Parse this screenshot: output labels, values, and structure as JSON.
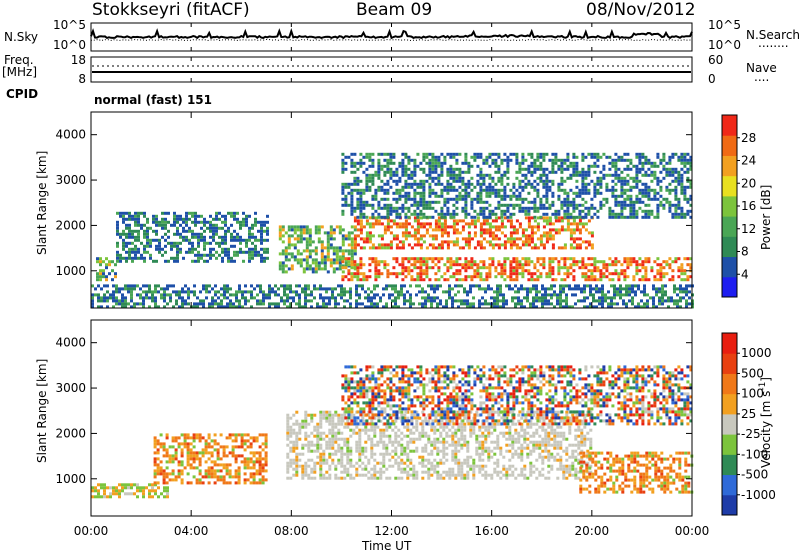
{
  "header": {
    "station": "Stokkseyri (fitACF)",
    "beam": "Beam 09",
    "date": "08/Nov/2012"
  },
  "left_labels": {
    "noise_sky": "N.Sky",
    "freq": "Freq.",
    "freq_unit": "[MHz]",
    "cpid": "CPID"
  },
  "right_labels": {
    "noise_search": "N.Search",
    "noise_search_line": "........",
    "nave": "Nave",
    "nave_line": "...."
  },
  "noise_axis": {
    "left_ticks": [
      "10^5",
      "10^0"
    ],
    "right_ticks": [
      "10^5",
      "10^0"
    ]
  },
  "freq_axis": {
    "left_ticks": [
      "18",
      "8"
    ],
    "right_ticks": [
      "60",
      "0"
    ]
  },
  "cpid_text": "normal (fast) 151",
  "colors": {
    "power_scale": [
      "#1e1ef0",
      "#1e50a8",
      "#2f8a55",
      "#4aa655",
      "#7cc43c",
      "#e8e020",
      "#f2a020",
      "#f06a14",
      "#f02818"
    ],
    "velocity_scale": [
      "#1e3ca8",
      "#2f6ad8",
      "#2f8a55",
      "#7cc43c",
      "#c8c8be",
      "#f2a020",
      "#f07818",
      "#e84010",
      "#e81e10"
    ]
  },
  "chart_data": [
    {
      "type": "heatmap",
      "panel": "power",
      "x_ticks": [
        "00:00",
        "04:00",
        "08:00",
        "12:00",
        "16:00",
        "20:00",
        "00:00"
      ],
      "xlim_hours": [
        0,
        24
      ],
      "ylabel": "Slant Range [km]",
      "ylim": [
        180,
        4500
      ],
      "y_ticks": [
        1000,
        2000,
        3000,
        4000
      ],
      "colorbar": {
        "label": "Power [dB]",
        "ticks": [
          4,
          8,
          12,
          16,
          20,
          24,
          28
        ],
        "range": [
          0,
          30
        ]
      },
      "features": [
        {
          "t_start": 0.0,
          "t_end": 24.0,
          "range_min": 200,
          "range_max": 700,
          "level": "low"
        },
        {
          "t_start": 0.2,
          "t_end": 1.0,
          "range_min": 800,
          "range_max": 1300,
          "level": "medium"
        },
        {
          "t_start": 1.0,
          "t_end": 7.0,
          "range_min": 1200,
          "range_max": 2300,
          "level": "low"
        },
        {
          "t_start": 7.5,
          "t_end": 10.5,
          "range_min": 1000,
          "range_max": 2000,
          "level": "medium"
        },
        {
          "t_start": 10.5,
          "t_end": 20.0,
          "range_min": 1500,
          "range_max": 2200,
          "level": "high"
        },
        {
          "t_start": 10.0,
          "t_end": 24.0,
          "range_min": 800,
          "range_max": 1300,
          "level": "high"
        },
        {
          "t_start": 10.0,
          "t_end": 24.0,
          "range_min": 2200,
          "range_max": 3600,
          "level": "low"
        }
      ]
    },
    {
      "type": "heatmap",
      "panel": "velocity",
      "x_ticks": [
        "00:00",
        "04:00",
        "08:00",
        "12:00",
        "16:00",
        "20:00",
        "00:00"
      ],
      "xlabel": "Time UT",
      "xlim_hours": [
        0,
        24
      ],
      "ylabel": "Slant Range [km]",
      "ylim": [
        180,
        4500
      ],
      "y_ticks": [
        1000,
        2000,
        3000,
        4000
      ],
      "colorbar": {
        "label": "Velocity [m s-1]",
        "ticks": [
          "1000",
          "500",
          "100",
          "25",
          "-25",
          "-100",
          "-500",
          "-1000"
        ]
      },
      "features": [
        {
          "t_start": 0.0,
          "t_end": 3.0,
          "range_min": 600,
          "range_max": 900,
          "level": "slow"
        },
        {
          "t_start": 2.5,
          "t_end": 7.0,
          "range_min": 900,
          "range_max": 2000,
          "level": "away"
        },
        {
          "t_start": 7.8,
          "t_end": 20.0,
          "range_min": 1000,
          "range_max": 2500,
          "level": "ground"
        },
        {
          "t_start": 10.0,
          "t_end": 24.0,
          "range_min": 2200,
          "range_max": 3500,
          "level": "mixed"
        },
        {
          "t_start": 19.5,
          "t_end": 24.0,
          "range_min": 700,
          "range_max": 1600,
          "level": "away"
        }
      ]
    }
  ]
}
